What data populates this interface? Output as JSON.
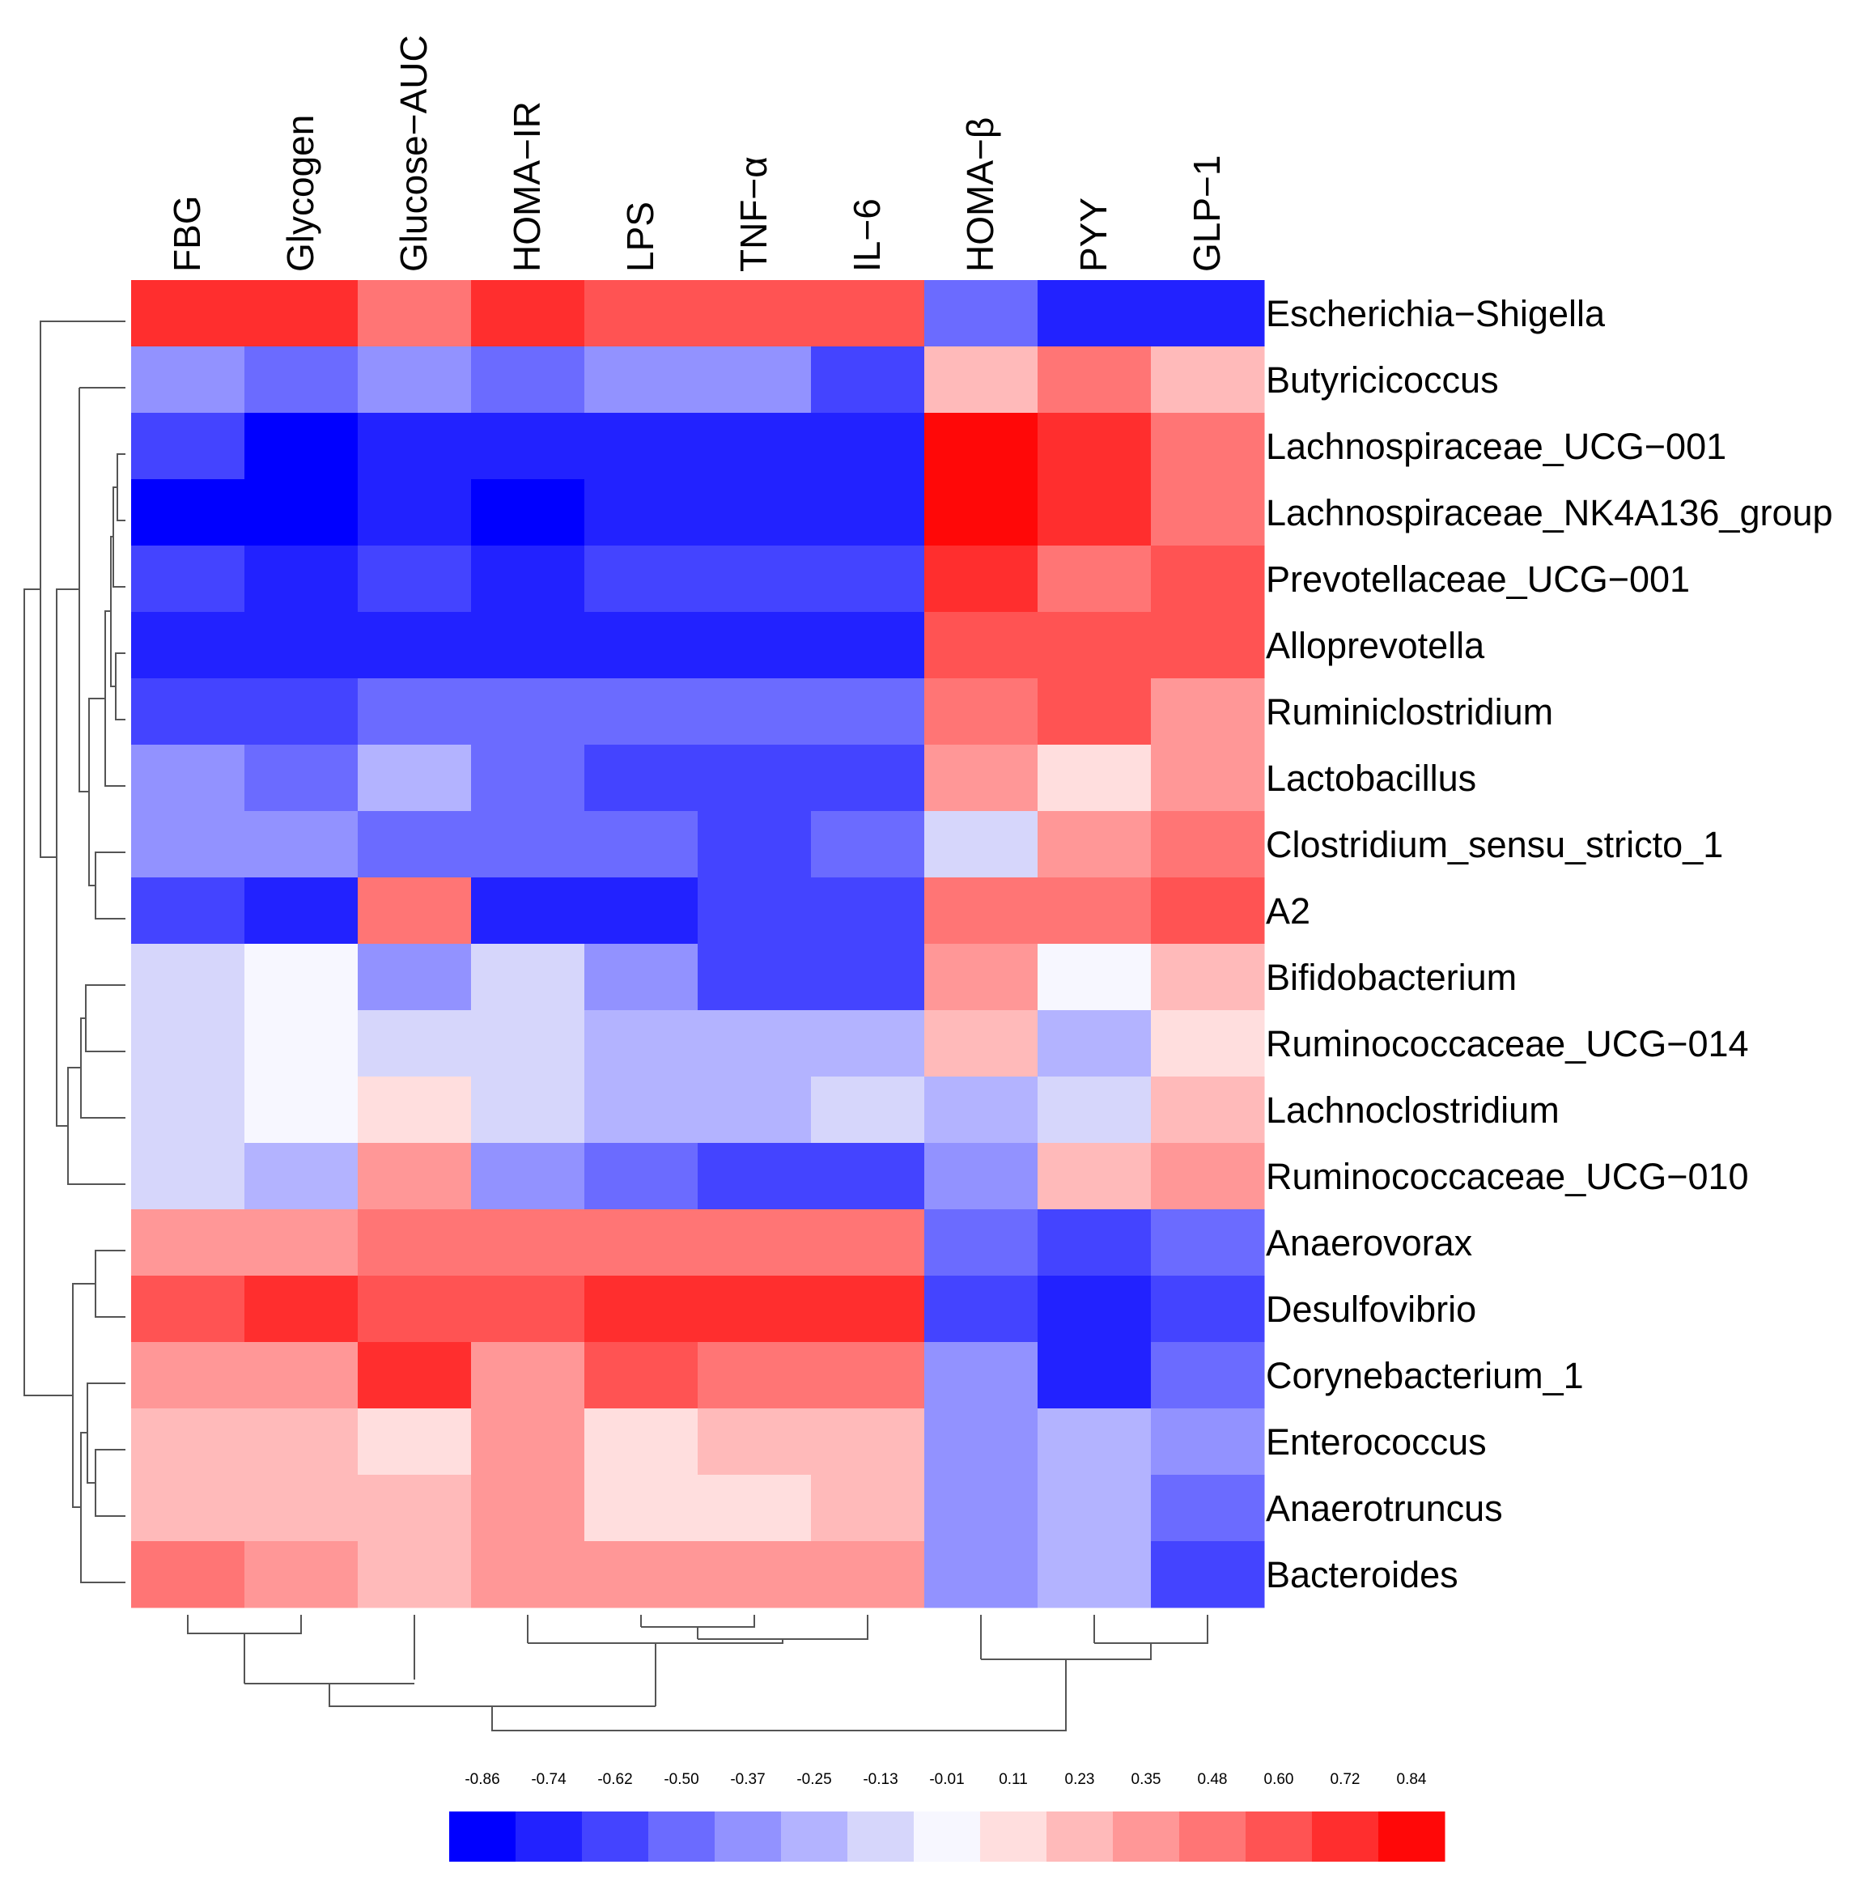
{
  "chart_data": {
    "type": "heatmap",
    "title": "",
    "columns": [
      "FBG",
      "Glycogen",
      "Glucose−AUC",
      "HOMA−IR",
      "LPS",
      "TNF−α",
      "IL−6",
      "HOMA−β",
      "PYY",
      "GLP−1"
    ],
    "rows": [
      "Escherichia−Shigella",
      "Butyricicoccus",
      "Lachnospiraceae_UCG−001",
      "Lachnospiraceae_NK4A136_group",
      "Prevotellaceae_UCG−001",
      "Alloprevotella",
      "Ruminiclostridium",
      "Lactobacillus",
      "Clostridium_sensu_stricto_1",
      "A2",
      "Bifidobacterium",
      "Ruminococcaceae_UCG−014",
      "Lachnoclostridium",
      "Ruminococcaceae_UCG−010",
      "Anaerovorax",
      "Desulfovibrio",
      "Corynebacterium_1",
      "Enterococcus",
      "Anaerotruncus",
      "Bacteroides"
    ],
    "values": [
      [
        0.72,
        0.72,
        0.48,
        0.72,
        0.6,
        0.6,
        0.6,
        -0.5,
        -0.74,
        -0.74
      ],
      [
        -0.37,
        -0.5,
        -0.37,
        -0.5,
        -0.37,
        -0.37,
        -0.62,
        0.23,
        0.48,
        0.23
      ],
      [
        -0.62,
        -0.86,
        -0.74,
        -0.74,
        -0.74,
        -0.74,
        -0.74,
        0.84,
        0.72,
        0.48
      ],
      [
        -0.86,
        -0.86,
        -0.74,
        -0.86,
        -0.74,
        -0.74,
        -0.74,
        0.84,
        0.72,
        0.48
      ],
      [
        -0.62,
        -0.74,
        -0.62,
        -0.74,
        -0.62,
        -0.62,
        -0.62,
        0.72,
        0.48,
        0.6
      ],
      [
        -0.74,
        -0.74,
        -0.74,
        -0.74,
        -0.74,
        -0.74,
        -0.74,
        0.6,
        0.6,
        0.6
      ],
      [
        -0.62,
        -0.62,
        -0.5,
        -0.5,
        -0.5,
        -0.5,
        -0.5,
        0.48,
        0.6,
        0.35
      ],
      [
        -0.37,
        -0.5,
        -0.25,
        -0.5,
        -0.62,
        -0.62,
        -0.62,
        0.35,
        0.11,
        0.35
      ],
      [
        -0.37,
        -0.37,
        -0.5,
        -0.5,
        -0.5,
        -0.62,
        -0.5,
        -0.13,
        0.35,
        0.48
      ],
      [
        -0.62,
        -0.74,
        0.48,
        -0.74,
        -0.74,
        -0.62,
        -0.62,
        0.48,
        0.48,
        0.6
      ],
      [
        -0.13,
        -0.01,
        -0.37,
        -0.13,
        -0.37,
        -0.62,
        -0.62,
        0.35,
        -0.01,
        0.23
      ],
      [
        -0.13,
        -0.01,
        -0.13,
        -0.13,
        -0.25,
        -0.25,
        -0.25,
        0.23,
        -0.25,
        0.11
      ],
      [
        -0.13,
        -0.01,
        0.11,
        -0.13,
        -0.25,
        -0.25,
        -0.13,
        -0.25,
        -0.13,
        0.23
      ],
      [
        -0.13,
        -0.25,
        0.35,
        -0.37,
        -0.5,
        -0.62,
        -0.62,
        -0.37,
        0.23,
        0.35
      ],
      [
        0.35,
        0.35,
        0.48,
        0.48,
        0.48,
        0.48,
        0.48,
        -0.5,
        -0.62,
        -0.5
      ],
      [
        0.6,
        0.72,
        0.6,
        0.6,
        0.72,
        0.72,
        0.72,
        -0.62,
        -0.74,
        -0.62
      ],
      [
        0.35,
        0.35,
        0.72,
        0.35,
        0.6,
        0.48,
        0.48,
        -0.37,
        -0.74,
        -0.5
      ],
      [
        0.23,
        0.23,
        0.11,
        0.35,
        0.11,
        0.23,
        0.23,
        -0.37,
        -0.25,
        -0.37
      ],
      [
        0.23,
        0.23,
        0.23,
        0.35,
        0.11,
        0.11,
        0.23,
        -0.37,
        -0.25,
        -0.5
      ],
      [
        0.48,
        0.35,
        0.23,
        0.35,
        0.35,
        0.35,
        0.35,
        -0.37,
        -0.25,
        -0.62
      ]
    ],
    "legend": {
      "ticks": [
        "-0.86",
        "-0.74",
        "-0.62",
        "-0.50",
        "-0.37",
        "-0.25",
        "-0.13",
        "-0.01",
        "0.11",
        "0.23",
        "0.35",
        "0.48",
        "0.60",
        "0.72",
        "0.84"
      ],
      "colors": [
        "#0000ff",
        "#2222ff",
        "#4444ff",
        "#6b6bff",
        "#9292ff",
        "#b3b3ff",
        "#d6d6fb",
        "#f7f7ff",
        "#ffdede",
        "#ffbaba",
        "#ff9797",
        "#ff7575",
        "#ff5353",
        "#ff2e2e",
        "#ff0808"
      ]
    },
    "row_dendrogram": true,
    "column_dendrogram": true
  }
}
